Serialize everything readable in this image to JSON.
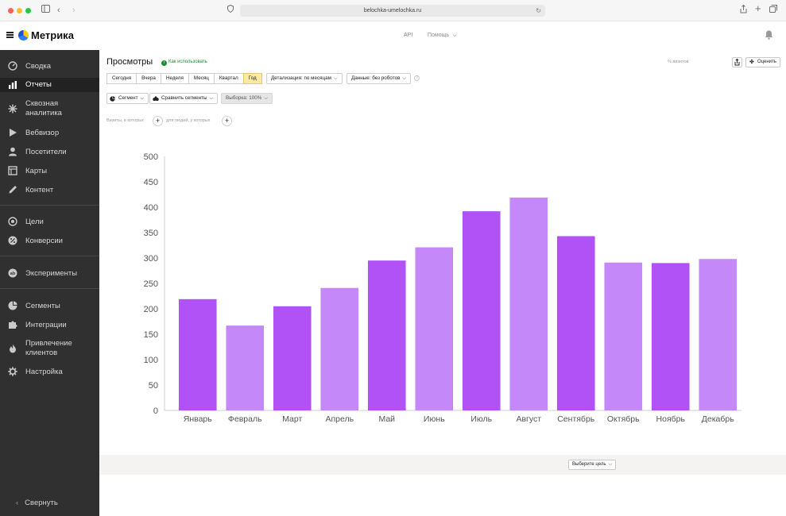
{
  "browser": {
    "url": "belochka-umelochka.ru",
    "traffic_lights": [
      "#ff5f57",
      "#febc2e",
      "#28c840"
    ]
  },
  "header": {
    "logo": "Метрика",
    "links": [
      "API",
      "Помощь"
    ]
  },
  "sidebar": {
    "items": [
      {
        "label": "Сводка",
        "icon": "gauge-icon"
      },
      {
        "label": "Отчеты",
        "icon": "bar-chart-icon",
        "active": true
      },
      {
        "label": "Сквозная аналитика",
        "icon": "snowflake-icon"
      },
      {
        "label": "Вебвизор",
        "icon": "play-icon"
      },
      {
        "label": "Посетители",
        "icon": "user-icon"
      },
      {
        "label": "Карты",
        "icon": "map-icon"
      },
      {
        "label": "Контент",
        "icon": "pencil-icon"
      },
      {
        "label": "Цели",
        "icon": "target-icon"
      },
      {
        "label": "Конверсии",
        "icon": "percent-icon"
      },
      {
        "label": "Эксперименты",
        "icon": "ab-icon"
      },
      {
        "label": "Сегменты",
        "icon": "pie-icon"
      },
      {
        "label": "Интеграции",
        "icon": "puzzle-icon"
      },
      {
        "label": "Привлечение клиентов",
        "icon": "flame-icon"
      },
      {
        "label": "Настройка",
        "icon": "gear-icon"
      }
    ],
    "collapse_label": "Свернуть"
  },
  "report": {
    "title": "Просмотры",
    "howto": "Как использовать",
    "visits_label": "% визитов",
    "rate_label": "Оценить",
    "periods": [
      "Сегодня",
      "Вчера",
      "Неделя",
      "Месяц",
      "Квартал",
      "Год"
    ],
    "selected_period": "Год",
    "detail_label": "Детализация: по месяцам",
    "data_label": "Данные: без роботов",
    "segment_label": "Сегмент",
    "compare_label": "Сравнить сегменты",
    "sample_label": "Выборка: 100%",
    "filter_visits": "Визиты, в которых",
    "filter_people": "для людей, у которых",
    "goal_select": "Выберите цель"
  },
  "colors": {
    "bar_dark": "#b052f5",
    "bar_light": "#c488f8",
    "sidebar_bg": "#303030",
    "selected_period_bg": "#fde9a4"
  },
  "chart_data": {
    "type": "bar",
    "categories": [
      "Январь",
      "Февраль",
      "Март",
      "Апрель",
      "Май",
      "Июнь",
      "Июль",
      "Август",
      "Сентябрь",
      "Октябрь",
      "Ноябрь",
      "Декабрь"
    ],
    "values": [
      219,
      167,
      205,
      241,
      295,
      321,
      392,
      419,
      343,
      291,
      290,
      298
    ],
    "ylim": [
      0,
      500
    ],
    "yticks": [
      0,
      50,
      100,
      150,
      200,
      250,
      300,
      350,
      400,
      450,
      500
    ],
    "grid": false,
    "title": "",
    "xlabel": "",
    "ylabel": ""
  }
}
